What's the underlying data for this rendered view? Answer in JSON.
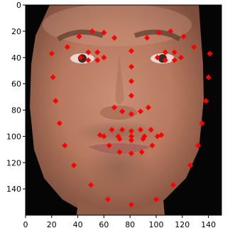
{
  "chart_data": {
    "type": "scatter",
    "title": "",
    "xlabel": "",
    "ylabel": "",
    "xlim": [
      0,
      150
    ],
    "ylim": [
      160,
      0
    ],
    "y_inverted": true,
    "grid": false,
    "background_image": "face-photo",
    "x_ticks": [
      0,
      20,
      40,
      60,
      80,
      100,
      120,
      140
    ],
    "y_ticks": [
      0,
      20,
      40,
      60,
      80,
      100,
      120,
      140
    ],
    "x_tick_labels": [
      "0",
      "20",
      "40",
      "60",
      "80",
      "100",
      "120",
      "140"
    ],
    "y_tick_labels": [
      "0",
      "20",
      "40",
      "60",
      "80",
      "100",
      "120",
      "140"
    ],
    "marker_color": "#ff0000",
    "series": [
      {
        "points": [
          {
            "x": 20,
            "y": 37
          },
          {
            "x": 21,
            "y": 55
          },
          {
            "x": 23,
            "y": 73
          },
          {
            "x": 26,
            "y": 90
          },
          {
            "x": 30,
            "y": 107
          },
          {
            "x": 37,
            "y": 122
          },
          {
            "x": 50,
            "y": 137
          },
          {
            "x": 63,
            "y": 148
          },
          {
            "x": 81,
            "y": 152
          },
          {
            "x": 100,
            "y": 148
          },
          {
            "x": 113,
            "y": 137
          },
          {
            "x": 126,
            "y": 122
          },
          {
            "x": 132,
            "y": 107
          },
          {
            "x": 135,
            "y": 90
          },
          {
            "x": 138,
            "y": 73
          },
          {
            "x": 140,
            "y": 55
          },
          {
            "x": 141,
            "y": 37
          },
          {
            "x": 32,
            "y": 32
          },
          {
            "x": 41,
            "y": 24
          },
          {
            "x": 51,
            "y": 20
          },
          {
            "x": 60,
            "y": 21
          },
          {
            "x": 68,
            "y": 25
          },
          {
            "x": 93,
            "y": 25
          },
          {
            "x": 102,
            "y": 21
          },
          {
            "x": 111,
            "y": 20
          },
          {
            "x": 121,
            "y": 24
          },
          {
            "x": 129,
            "y": 32
          },
          {
            "x": 81,
            "y": 35
          },
          {
            "x": 81,
            "y": 47
          },
          {
            "x": 81,
            "y": 58
          },
          {
            "x": 81,
            "y": 69
          },
          {
            "x": 68,
            "y": 78
          },
          {
            "x": 74,
            "y": 81
          },
          {
            "x": 81,
            "y": 83
          },
          {
            "x": 88,
            "y": 81
          },
          {
            "x": 94,
            "y": 78
          },
          {
            "x": 42,
            "y": 40
          },
          {
            "x": 48,
            "y": 36
          },
          {
            "x": 55,
            "y": 36
          },
          {
            "x": 60,
            "y": 40
          },
          {
            "x": 55,
            "y": 42
          },
          {
            "x": 48,
            "y": 42
          },
          {
            "x": 101,
            "y": 40
          },
          {
            "x": 107,
            "y": 36
          },
          {
            "x": 114,
            "y": 36
          },
          {
            "x": 119,
            "y": 40
          },
          {
            "x": 114,
            "y": 42
          },
          {
            "x": 107,
            "y": 42
          },
          {
            "x": 57,
            "y": 99
          },
          {
            "x": 66,
            "y": 95
          },
          {
            "x": 74,
            "y": 95
          },
          {
            "x": 81,
            "y": 96
          },
          {
            "x": 88,
            "y": 95
          },
          {
            "x": 96,
            "y": 95
          },
          {
            "x": 104,
            "y": 99
          },
          {
            "x": 97,
            "y": 107
          },
          {
            "x": 89,
            "y": 112
          },
          {
            "x": 81,
            "y": 113
          },
          {
            "x": 72,
            "y": 112
          },
          {
            "x": 64,
            "y": 107
          },
          {
            "x": 60,
            "y": 100
          },
          {
            "x": 71,
            "y": 100
          },
          {
            "x": 81,
            "y": 100
          },
          {
            "x": 91,
            "y": 100
          },
          {
            "x": 101,
            "y": 100
          },
          {
            "x": 90,
            "y": 102
          },
          {
            "x": 81,
            "y": 103
          },
          {
            "x": 72,
            "y": 102
          }
        ]
      }
    ]
  }
}
